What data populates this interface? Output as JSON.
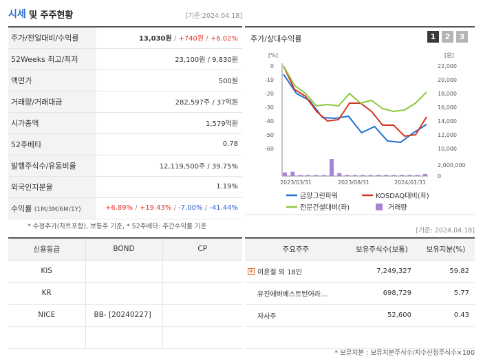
{
  "header": {
    "title_main": "시세",
    "title_sub": "및 주주현황",
    "base_date": "[기준:2024.04.18]"
  },
  "quote": {
    "rows": [
      {
        "label": "주가/전일대비/수익률",
        "price": "13,030원",
        "change": "+740원",
        "pct": "+6.02%"
      },
      {
        "label": "52Weeks 최고/최저",
        "value": "23,100원 / 9,830원"
      },
      {
        "label": "액면가",
        "value": "500원"
      },
      {
        "label": "거래량/거래대금",
        "value": "282,597주 / 37억원"
      },
      {
        "label": "시가총액",
        "value": "1,579억원"
      },
      {
        "label": "52주베타",
        "value": "0.78"
      },
      {
        "label": "발행주식수/유동비율",
        "value": "12,119,500주 / 39.75%"
      },
      {
        "label": "외국인지분율",
        "value": "1.19%"
      }
    ],
    "returns": {
      "label": "수익률",
      "label_small": "(1M/3M/6M/1Y)",
      "r1": "+6.89%",
      "r2": "+19.43%",
      "r3": "-7.00%",
      "r4": "-41.44%"
    },
    "note": "* 수정주가(차트포함), 보통주 기준, * 52주베타: 주간수익률 기준"
  },
  "chart_panel": {
    "title": "주가/상대수익률",
    "buttons": [
      "1",
      "2",
      "3"
    ],
    "active_button": 0,
    "date_right": "[기준: 2024.04.18]"
  },
  "chart_data": {
    "type": "line",
    "left_axis_unit": "[%]",
    "right_axis_unit": "[원]",
    "left_ticks": [
      "0",
      "-10",
      "-20",
      "-30",
      "-40",
      "-50",
      "-60"
    ],
    "right_ticks": [
      "22,000",
      "20,000",
      "18,000",
      "16,000",
      "14,000",
      "12,000",
      "10,000"
    ],
    "volume_ticks": [
      "2,000,000",
      "0"
    ],
    "x_labels": [
      "2023/03/31",
      "2023/08/31",
      "2024/01/31"
    ],
    "ylim_left": [
      -60,
      0
    ],
    "ylim_right": [
      10000,
      22000
    ],
    "series": [
      {
        "name": "금양그린파워",
        "color": "#1f6fd1",
        "axis": "right",
        "values": [
          20800,
          18000,
          17000,
          14500,
          14400,
          14700,
          12300,
          13200,
          11100,
          10900,
          12300,
          13500
        ]
      },
      {
        "name": "KOSDAQ대비(좌)",
        "color": "#d6321e",
        "axis": "left",
        "values": [
          0,
          -17,
          -22,
          -33,
          -40,
          -39,
          -27,
          -27,
          -33,
          -43,
          -43,
          -51,
          -50,
          -37
        ]
      },
      {
        "name": "전문건설대비(좌)",
        "color": "#8cc63f",
        "axis": "left",
        "values": [
          0,
          -14,
          -20,
          -29,
          -28,
          -29,
          -20,
          -27,
          -25,
          -31,
          -33,
          -32,
          -27,
          -19
        ]
      }
    ],
    "volume": {
      "name": "거래량",
      "color": "#a684d6",
      "values": [
        500000,
        600000,
        100000,
        100000,
        120000,
        100000,
        2400000,
        400000,
        150000,
        100000,
        100000,
        100000,
        150000,
        100000,
        100000,
        150000,
        100000,
        100000,
        300000
      ]
    }
  },
  "credit": {
    "headers": [
      "신용등급",
      "BOND",
      "CP"
    ],
    "rows": [
      {
        "agency": "KIS",
        "bond": "",
        "cp": ""
      },
      {
        "agency": "KR",
        "bond": "",
        "cp": ""
      },
      {
        "agency": "NICE",
        "bond": "BB-   [20240227]",
        "cp": ""
      },
      {
        "agency": "",
        "bond": "",
        "cp": ""
      }
    ]
  },
  "holders": {
    "headers": [
      "주요주주",
      "보유주식수(보통)",
      "보유지분(%)"
    ],
    "rows": [
      {
        "name": "이윤철 외 18인",
        "shares": "7,249,327",
        "pct": "59.82",
        "expand": true
      },
      {
        "name": "유진에버베스트턴어라…",
        "shares": "698,729",
        "pct": "5.77",
        "expand": false
      },
      {
        "name": "자사주",
        "shares": "52,600",
        "pct": "0.43",
        "expand": false
      },
      {
        "name": "",
        "shares": "",
        "pct": "",
        "expand": false
      }
    ],
    "note": "* 보유지분 : 보유지분주식수/지수산정주식수×100"
  }
}
